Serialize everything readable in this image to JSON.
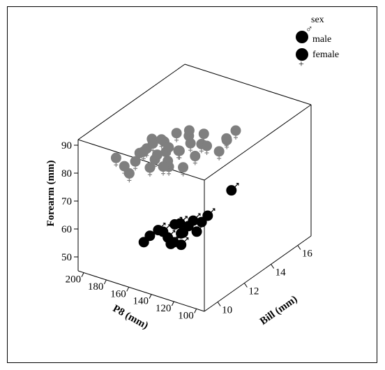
{
  "chart_data": {
    "type": "scatter",
    "subtype": "3d-scatter",
    "axes": {
      "x": {
        "label": "Bill (mm)",
        "range": [
          9,
          17
        ],
        "ticks": [
          10,
          12,
          14,
          16
        ]
      },
      "y": {
        "label": "P8 (mm)",
        "range": [
          93,
          205
        ],
        "ticks": [
          100,
          120,
          140,
          160,
          180,
          200
        ]
      },
      "z": {
        "label": "Forearm (mm)",
        "range": [
          45,
          92
        ],
        "ticks": [
          50,
          60,
          70,
          80,
          90
        ]
      }
    },
    "legend": {
      "title": "sex",
      "placement": "top-right",
      "entries": [
        {
          "label": "male",
          "marker": "♂",
          "color": "#000000"
        },
        {
          "label": "female",
          "marker": "+",
          "color": "#000000"
        }
      ]
    },
    "series": [
      {
        "name": "male",
        "color": "#000000",
        "points": [
          {
            "bill": 11.6,
            "p8": 150,
            "forearm": 60
          },
          {
            "bill": 11.2,
            "p8": 160,
            "forearm": 58
          },
          {
            "bill": 11.3,
            "p8": 150,
            "forearm": 54
          },
          {
            "bill": 11.8,
            "p8": 145,
            "forearm": 57
          },
          {
            "bill": 12.2,
            "p8": 145,
            "forearm": 58
          },
          {
            "bill": 11.5,
            "p8": 155,
            "forearm": 55
          },
          {
            "bill": 12.0,
            "p8": 150,
            "forearm": 59
          },
          {
            "bill": 11.0,
            "p8": 165,
            "forearm": 56
          },
          {
            "bill": 12.4,
            "p8": 140,
            "forearm": 56
          },
          {
            "bill": 11.7,
            "p8": 152,
            "forearm": 53
          },
          {
            "bill": 12.6,
            "p8": 138,
            "forearm": 59
          },
          {
            "bill": 10.8,
            "p8": 168,
            "forearm": 54
          },
          {
            "bill": 11.9,
            "p8": 148,
            "forearm": 56
          },
          {
            "bill": 12.3,
            "p8": 142,
            "forearm": 60
          },
          {
            "bill": 11.4,
            "p8": 158,
            "forearm": 57
          },
          {
            "bill": 15.0,
            "p8": 140,
            "forearm": 62
          },
          {
            "bill": 12.5,
            "p8": 155,
            "forearm": 49
          },
          {
            "bill": 12.8,
            "p8": 135,
            "forearm": 61
          }
        ]
      },
      {
        "name": "female",
        "color": "#7f7f7f",
        "points": [
          {
            "bill": 12.0,
            "p8": 175,
            "forearm": 86
          },
          {
            "bill": 12.5,
            "p8": 170,
            "forearm": 84
          },
          {
            "bill": 13.0,
            "p8": 165,
            "forearm": 86
          },
          {
            "bill": 13.5,
            "p8": 160,
            "forearm": 84
          },
          {
            "bill": 12.2,
            "p8": 165,
            "forearm": 82
          },
          {
            "bill": 12.8,
            "p8": 160,
            "forearm": 81
          },
          {
            "bill": 13.2,
            "p8": 155,
            "forearm": 83
          },
          {
            "bill": 11.8,
            "p8": 170,
            "forearm": 80
          },
          {
            "bill": 12.4,
            "p8": 175,
            "forearm": 79
          },
          {
            "bill": 13.6,
            "p8": 150,
            "forearm": 82
          },
          {
            "bill": 12.0,
            "p8": 160,
            "forearm": 78
          },
          {
            "bill": 12.6,
            "p8": 168,
            "forearm": 77
          },
          {
            "bill": 13.0,
            "p8": 172,
            "forearm": 80
          },
          {
            "bill": 14.0,
            "p8": 150,
            "forearm": 80
          },
          {
            "bill": 11.5,
            "p8": 180,
            "forearm": 82
          },
          {
            "bill": 11.6,
            "p8": 185,
            "forearm": 78
          },
          {
            "bill": 12.1,
            "p8": 178,
            "forearm": 75
          },
          {
            "bill": 11.4,
            "p8": 188,
            "forearm": 74
          },
          {
            "bill": 11.2,
            "p8": 190,
            "forearm": 77
          },
          {
            "bill": 13.8,
            "p8": 158,
            "forearm": 76
          },
          {
            "bill": 14.5,
            "p8": 145,
            "forearm": 77
          },
          {
            "bill": 15.5,
            "p8": 150,
            "forearm": 77
          },
          {
            "bill": 16.0,
            "p8": 148,
            "forearm": 79
          },
          {
            "bill": 12.8,
            "p8": 176,
            "forearm": 83
          },
          {
            "bill": 13.4,
            "p8": 168,
            "forearm": 78
          },
          {
            "bill": 12.2,
            "p8": 182,
            "forearm": 81
          },
          {
            "bill": 12.9,
            "p8": 158,
            "forearm": 75
          },
          {
            "bill": 13.7,
            "p8": 162,
            "forearm": 85
          },
          {
            "bill": 11.9,
            "p8": 173,
            "forearm": 85
          },
          {
            "bill": 14.2,
            "p8": 155,
            "forearm": 83
          },
          {
            "bill": 12.3,
            "p8": 186,
            "forearm": 79
          },
          {
            "bill": 13.1,
            "p8": 178,
            "forearm": 72
          },
          {
            "bill": 11.0,
            "p8": 195,
            "forearm": 80
          },
          {
            "bill": 14.8,
            "p8": 142,
            "forearm": 81
          }
        ]
      }
    ]
  }
}
